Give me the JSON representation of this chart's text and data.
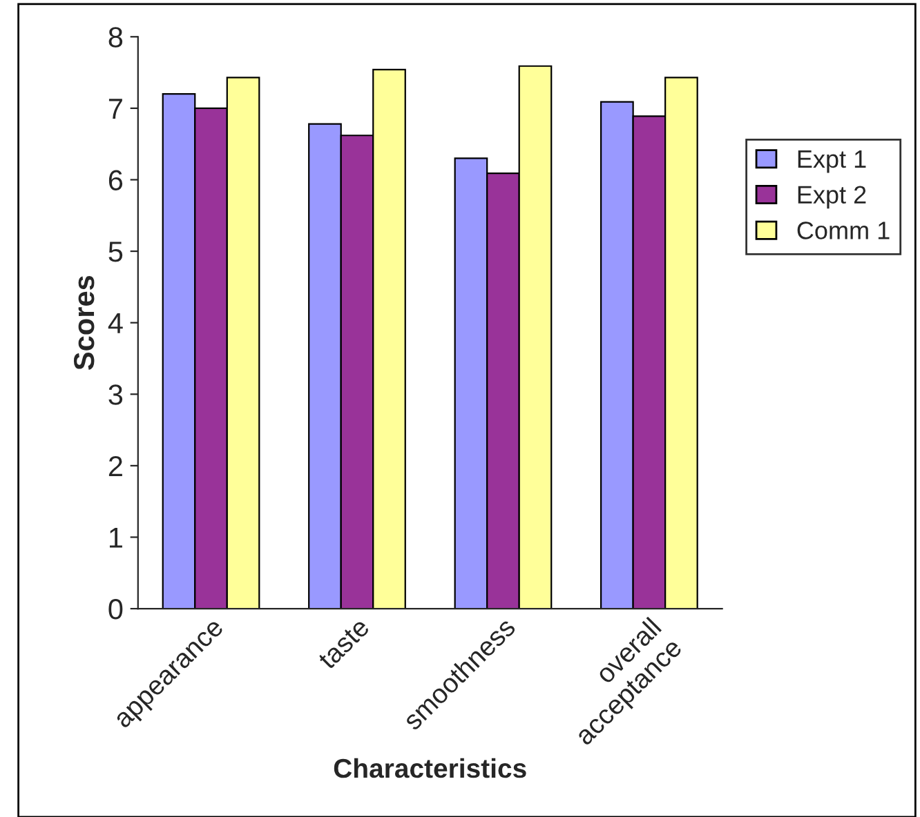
{
  "chart_data": {
    "type": "bar",
    "xlabel": "Characteristics",
    "ylabel": "Scores",
    "categories": [
      "appearance",
      "taste",
      "smoothness",
      "overall\nacceptance"
    ],
    "series": [
      {
        "name": "Expt 1",
        "color": "#9999ff",
        "values": [
          7.2,
          6.78,
          6.3,
          7.09
        ]
      },
      {
        "name": "Expt 2",
        "color": "#993399",
        "values": [
          7.0,
          6.62,
          6.09,
          6.89
        ]
      },
      {
        "name": "Comm 1",
        "color": "#ffff99",
        "values": [
          7.43,
          7.54,
          7.59,
          7.43
        ]
      }
    ],
    "ylim": [
      0,
      8
    ],
    "yticks": [
      0,
      1,
      2,
      3,
      4,
      5,
      6,
      7,
      8
    ],
    "grid": false,
    "legend": "right"
  }
}
